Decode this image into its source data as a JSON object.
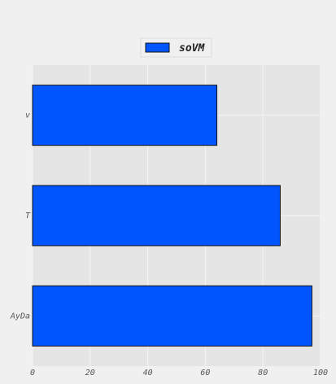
{
  "chart_data": {
    "type": "bar",
    "orientation": "horizontal",
    "categories": [
      "AyDa",
      "T",
      "v"
    ],
    "series": [
      {
        "name": "soVM",
        "values": [
          97,
          86,
          64
        ]
      }
    ],
    "xlim": [
      0,
      100
    ],
    "xticks": [
      "0",
      "20",
      "40",
      "60",
      "80",
      "100"
    ],
    "grid": true,
    "legend_position": "top-center",
    "colors": {
      "bar": "#0055ff",
      "bar_edge": "#111111",
      "plot_bg": "#e5e5e5",
      "page_bg": "#f0f0f0",
      "grid": "#f5f5f5"
    }
  }
}
